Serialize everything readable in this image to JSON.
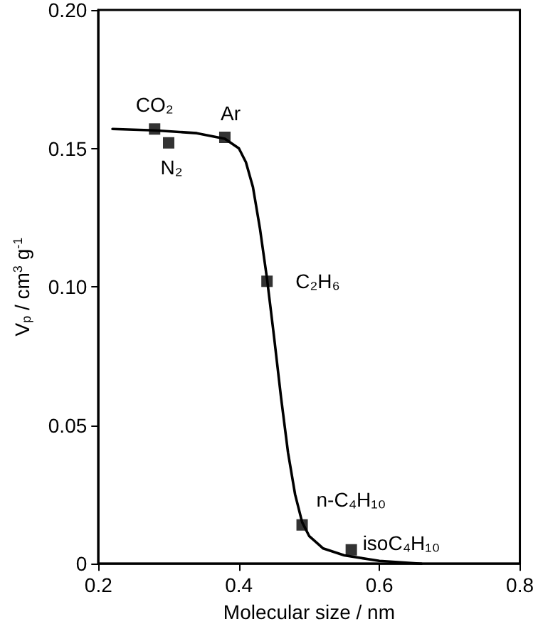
{
  "chart_data": {
    "type": "scatter",
    "xlabel": "Molecular size / nm",
    "ylabel": "V$_{p}$ / cm$^{3}$ g$^{-1}$",
    "xlim": [
      0.2,
      0.8
    ],
    "xticks": [
      0.2,
      0.4,
      0.6,
      0.8
    ],
    "ylim": [
      0,
      0.2
    ],
    "yticks": [
      {
        "value": 0,
        "label": "0"
      },
      {
        "value": 0.05,
        "label": "0.05"
      },
      {
        "value": 0.1,
        "label": "0.10"
      },
      {
        "value": 0.15,
        "label": "0.15"
      },
      {
        "value": 0.2,
        "label": "0.20"
      }
    ],
    "grid": false,
    "marker": "square",
    "series": [
      {
        "color": "#000000",
        "x": [
          0.28,
          0.3,
          0.38,
          0.44,
          0.49,
          0.56
        ],
        "values": [
          0.157,
          0.152,
          0.154,
          0.102,
          0.014,
          0.005
        ]
      },
      {
        "type": "line",
        "color": "#000000",
        "marker": "none",
        "line_style": "solid",
        "x": [
          0.22,
          0.28,
          0.34,
          0.38,
          0.4,
          0.41,
          0.42,
          0.43,
          0.44,
          0.45,
          0.46,
          0.47,
          0.48,
          0.49,
          0.5,
          0.52,
          0.55,
          0.6,
          0.66
        ],
        "values": [
          0.157,
          0.1565,
          0.1555,
          0.1535,
          0.15,
          0.145,
          0.136,
          0.121,
          0.103,
          0.082,
          0.06,
          0.04,
          0.025,
          0.015,
          0.01,
          0.0055,
          0.003,
          0.001,
          0
        ]
      }
    ],
    "annotations": [
      {
        "text": "CO₂",
        "x": 0.28,
        "y": 0.157
      },
      {
        "text": "N₂",
        "x": 0.3,
        "y": 0.152
      },
      {
        "text": "Ar",
        "x": 0.38,
        "y": 0.154
      },
      {
        "text": "C₂H₆",
        "x": 0.44,
        "y": 0.102
      },
      {
        "text": "n-C₄H₁₀",
        "x": 0.49,
        "y": 0.014
      },
      {
        "text": "isoC₄H₁₀",
        "x": 0.56,
        "y": 0.005
      }
    ]
  }
}
